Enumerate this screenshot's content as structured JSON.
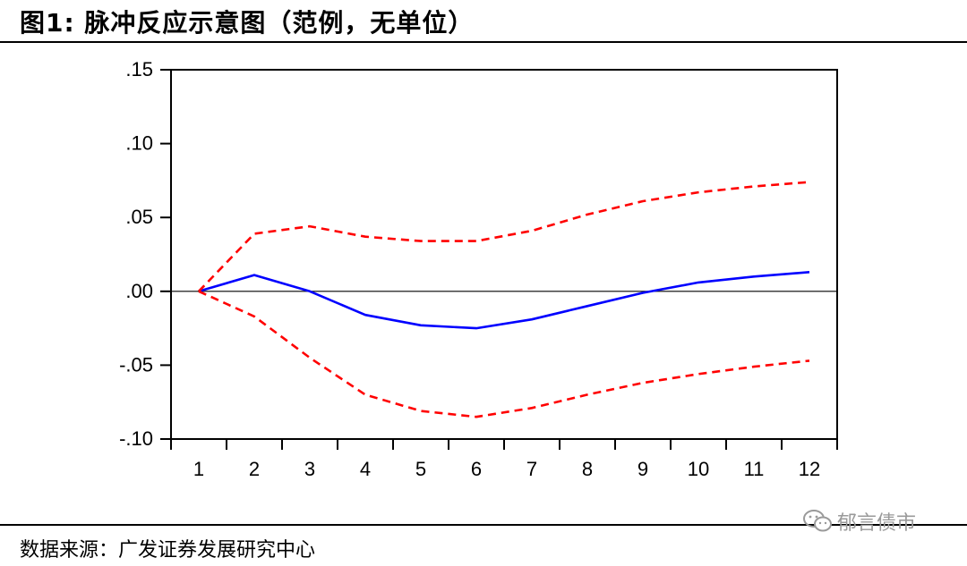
{
  "header": {
    "title": "图1:  脉冲反应示意图（范例，无单位）"
  },
  "footer": {
    "source": "数据来源：广发证券发展研究中心"
  },
  "watermark": {
    "text": "郁言债市"
  },
  "colors": {
    "response": "#0000ff",
    "band": "#ff0000",
    "zero_line": "#000000",
    "axis": "#000000"
  },
  "chart_data": {
    "type": "line",
    "categories": [
      "1",
      "2",
      "3",
      "4",
      "5",
      "6",
      "7",
      "8",
      "9",
      "10",
      "11",
      "12"
    ],
    "ylim": [
      -0.1,
      0.15
    ],
    "yticks": [
      ".15",
      ".10",
      ".05",
      ".00",
      "-.05",
      "-.10"
    ],
    "ytick_values": [
      0.15,
      0.1,
      0.05,
      0.0,
      -0.05,
      -0.1
    ],
    "series": [
      {
        "style": "solid",
        "color": "#0000ff",
        "values": [
          0.0,
          0.011,
          0.0,
          -0.016,
          -0.023,
          -0.025,
          -0.019,
          -0.01,
          -0.001,
          0.006,
          0.01,
          0.013
        ]
      },
      {
        "style": "dashed",
        "color": "#ff0000",
        "values": [
          0.0,
          0.039,
          0.044,
          0.037,
          0.034,
          0.034,
          0.041,
          0.052,
          0.061,
          0.067,
          0.071,
          0.074
        ]
      },
      {
        "style": "dashed",
        "color": "#ff0000",
        "values": [
          0.0,
          -0.017,
          -0.045,
          -0.07,
          -0.081,
          -0.085,
          -0.079,
          -0.07,
          -0.062,
          -0.056,
          -0.051,
          -0.047
        ]
      }
    ],
    "zero_line": 0.0,
    "grid": false,
    "legend": "none"
  }
}
